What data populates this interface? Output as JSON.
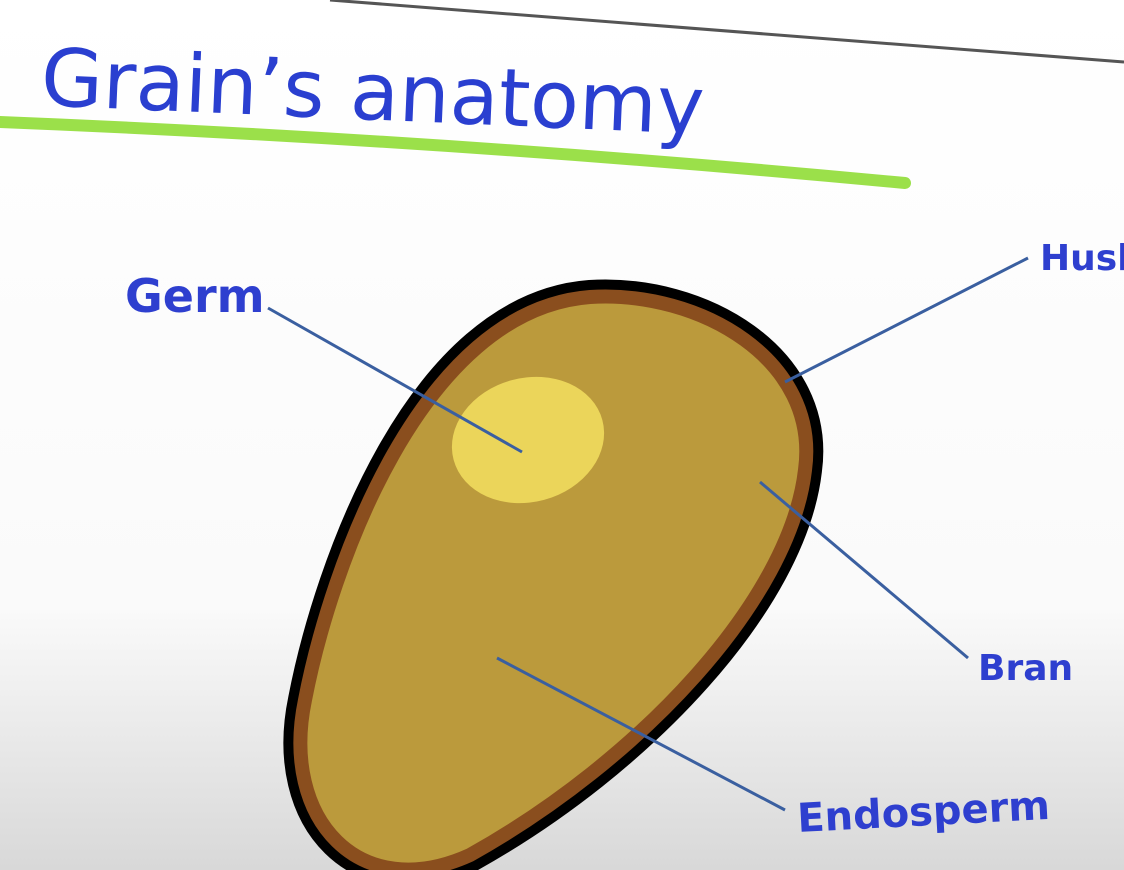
{
  "title": "Grain’s anatomy",
  "labels": [
    "Germ",
    "Husk",
    "Bran",
    "Endosperm"
  ]
}
